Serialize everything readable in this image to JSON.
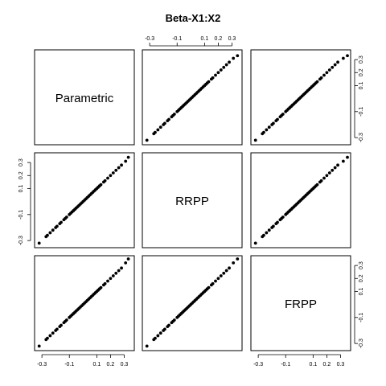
{
  "chart_data": {
    "type": "scatter",
    "title": "Beta-X1:X2",
    "variables": [
      "Parametric",
      "RRPP",
      "FRPP"
    ],
    "axis_range": [
      -0.33,
      0.35
    ],
    "ticks": [
      -0.3,
      -0.1,
      0.1,
      0.2,
      0.3
    ],
    "tick_labels": [
      "-0.3",
      "-0.1",
      "0.1",
      "0.2",
      "0.3"
    ],
    "grid": false,
    "legend": "none",
    "values": {
      "Parametric": [
        -0.32,
        -0.27,
        -0.26,
        -0.24,
        -0.22,
        -0.2,
        -0.19,
        -0.17,
        -0.16,
        -0.14,
        -0.13,
        -0.12,
        -0.1,
        -0.09,
        -0.08,
        -0.07,
        -0.06,
        -0.05,
        -0.04,
        -0.03,
        -0.02,
        -0.01,
        0.0,
        0.01,
        0.02,
        0.03,
        0.04,
        0.05,
        0.06,
        0.07,
        0.08,
        0.09,
        0.1,
        0.11,
        0.12,
        0.13,
        0.15,
        0.16,
        0.18,
        0.2,
        0.22,
        0.24,
        0.26,
        0.28,
        0.31,
        0.33
      ],
      "RRPP": [
        -0.32,
        -0.27,
        -0.26,
        -0.24,
        -0.22,
        -0.2,
        -0.19,
        -0.17,
        -0.16,
        -0.14,
        -0.13,
        -0.12,
        -0.1,
        -0.09,
        -0.08,
        -0.07,
        -0.06,
        -0.05,
        -0.04,
        -0.03,
        -0.02,
        -0.01,
        0.0,
        0.01,
        0.02,
        0.03,
        0.04,
        0.05,
        0.06,
        0.07,
        0.08,
        0.09,
        0.1,
        0.11,
        0.12,
        0.13,
        0.15,
        0.16,
        0.18,
        0.2,
        0.22,
        0.24,
        0.26,
        0.28,
        0.31,
        0.34
      ],
      "FRPP": [
        -0.32,
        -0.27,
        -0.26,
        -0.24,
        -0.22,
        -0.2,
        -0.19,
        -0.17,
        -0.16,
        -0.14,
        -0.13,
        -0.12,
        -0.1,
        -0.09,
        -0.08,
        -0.07,
        -0.06,
        -0.05,
        -0.04,
        -0.03,
        -0.02,
        -0.01,
        0.0,
        0.01,
        0.02,
        0.03,
        0.04,
        0.05,
        0.06,
        0.07,
        0.08,
        0.09,
        0.1,
        0.11,
        0.12,
        0.13,
        0.15,
        0.16,
        0.18,
        0.2,
        0.22,
        0.24,
        0.26,
        0.28,
        0.32,
        0.35
      ]
    }
  }
}
